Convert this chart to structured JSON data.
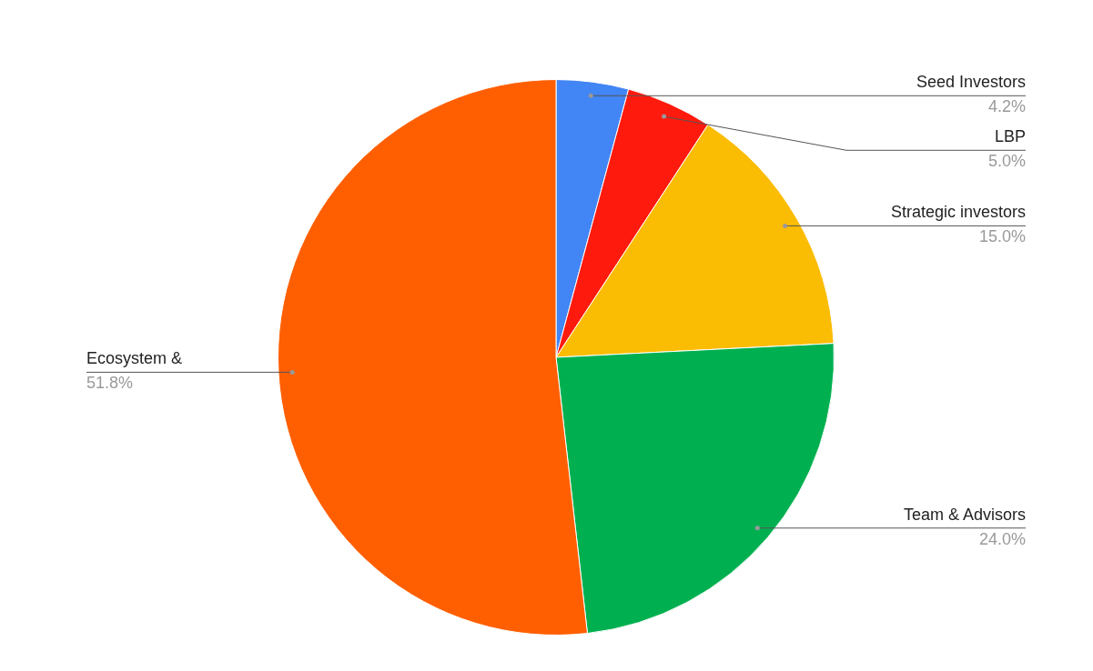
{
  "chart_data": {
    "type": "pie",
    "categories": [
      "Seed Investors",
      "LBP",
      "Strategic investors",
      "Team & Advisors",
      "Ecosystem &"
    ],
    "values": [
      4.2,
      5.0,
      15.0,
      24.0,
      51.8
    ],
    "colors": [
      "#4285f4",
      "#ff1a0e",
      "#fbbc04",
      "#00b050",
      "#ff5f00"
    ],
    "value_labels": [
      "4.2%",
      "5.0%",
      "15.0%",
      "24.0%",
      "51.8%"
    ],
    "legend": false
  }
}
